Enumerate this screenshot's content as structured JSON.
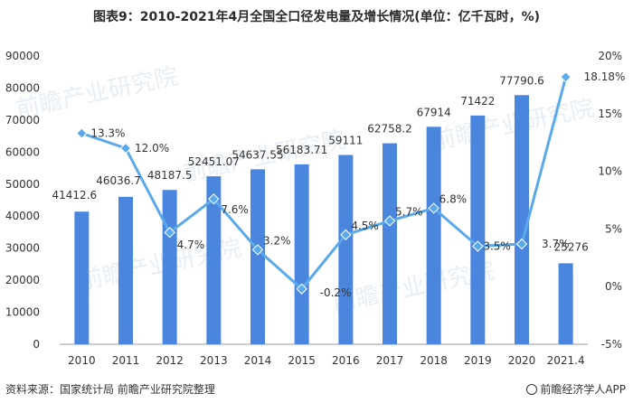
{
  "title": "图表9：2010-2021年4月全国全口径发电量及增长情况(单位：亿千瓦时，%)",
  "source": "资料来源：国家统计局 前瞻产业研究院整理",
  "brand": "前瞻经济学人APP",
  "watermark": "前瞻产业研究院",
  "colors": {
    "bar": "#4a86de",
    "line": "#5aa9ea",
    "axis_text": "#333333",
    "grid": "#e6e6e6"
  },
  "chart_data": {
    "type": "bar",
    "categories": [
      "2010",
      "2011",
      "2012",
      "2013",
      "2014",
      "2015",
      "2016",
      "2017",
      "2018",
      "2019",
      "2020",
      "2021.4"
    ],
    "series": [
      {
        "type": "bar",
        "axis": "left",
        "values": [
          41412.6,
          46036.7,
          48187.5,
          52451.07,
          54637.55,
          56183.71,
          59111,
          62758.2,
          67914,
          71422,
          77790.6,
          25276
        ],
        "labels": [
          "41412.6",
          "46036.7",
          "48187.5",
          "52451.07",
          "54637.55",
          "56183.71",
          "59111",
          "62758.2",
          "67914",
          "71422",
          "77790.6",
          "25276"
        ]
      },
      {
        "type": "line",
        "axis": "right",
        "values": [
          13.3,
          12.0,
          4.7,
          7.6,
          3.2,
          -0.2,
          4.5,
          5.7,
          6.8,
          3.5,
          3.7,
          18.18
        ],
        "labels": [
          "13.3%",
          "12.0%",
          "4.7%",
          "7.6%",
          "3.2%",
          "-0.2%",
          "4.5%",
          "5.7%",
          "6.8%",
          "3.5%",
          "3.7%",
          "18.18%"
        ]
      }
    ],
    "y_left": {
      "min": 0,
      "max": 90000,
      "ticks": [
        "0",
        "10000",
        "20000",
        "30000",
        "40000",
        "50000",
        "60000",
        "70000",
        "80000",
        "90000"
      ]
    },
    "y_right": {
      "min": -5,
      "max": 20,
      "ticks": [
        "-5%",
        "0%",
        "5%",
        "10%",
        "15%",
        "20%"
      ]
    },
    "grid": false,
    "legend": "none"
  }
}
